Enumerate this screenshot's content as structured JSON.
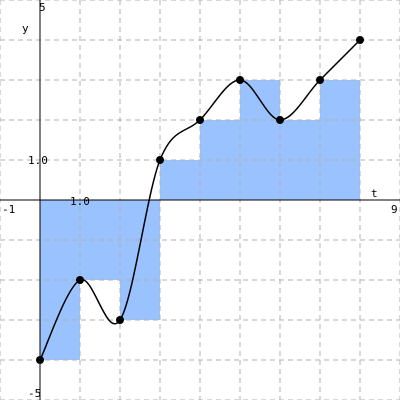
{
  "chart_data": {
    "type": "line",
    "title": "",
    "xlabel": "t",
    "ylabel": "y",
    "xlim": [
      -1,
      9
    ],
    "ylim": [
      -5,
      5
    ],
    "grid": true,
    "tick_labels": {
      "x_min": "-1",
      "x_max": "9",
      "x_unit": "1.0",
      "y_min": "-5",
      "y_max": "5",
      "y_unit": "1.0"
    },
    "points": [
      {
        "x": 0,
        "y": -4
      },
      {
        "x": 1,
        "y": -2
      },
      {
        "x": 2,
        "y": -3
      },
      {
        "x": 3,
        "y": 1
      },
      {
        "x": 4,
        "y": 2
      },
      {
        "x": 5,
        "y": 3
      },
      {
        "x": 6,
        "y": 2
      },
      {
        "x": 7,
        "y": 3
      },
      {
        "x": 8,
        "y": 4
      }
    ],
    "step_bars": [
      {
        "x0": 0,
        "x1": 1,
        "value": -4
      },
      {
        "x0": 1,
        "x1": 2,
        "value": -2
      },
      {
        "x0": 2,
        "x1": 3,
        "value": -3
      },
      {
        "x0": 3,
        "x1": 4,
        "value": 1
      },
      {
        "x0": 4,
        "x1": 5,
        "value": 2
      },
      {
        "x0": 5,
        "x1": 6,
        "value": 3
      },
      {
        "x0": 6,
        "x1": 7,
        "value": 2
      },
      {
        "x0": 7,
        "x1": 8,
        "value": 3
      }
    ],
    "colors": {
      "bar_fill": "#99c2ff",
      "curve": "#000000",
      "grid": "#b0b0b0",
      "axis": "#000000",
      "point": "#000000"
    }
  }
}
